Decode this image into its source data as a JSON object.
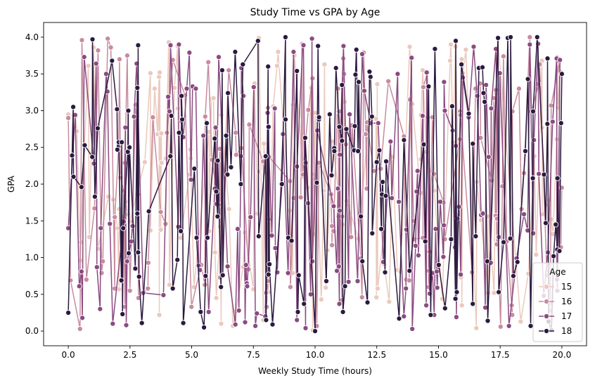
{
  "chart_data": {
    "type": "line",
    "title": "Study Time vs GPA by Age",
    "xlabel": "Weekly Study Time (hours)",
    "ylabel": "GPA",
    "xlim": [
      -1.0,
      21.0
    ],
    "ylim": [
      -0.2,
      4.2
    ],
    "xticks": [
      0.0,
      2.5,
      5.0,
      7.5,
      10.0,
      12.5,
      15.0,
      17.5,
      20.0
    ],
    "xtick_labels": [
      "0.0",
      "2.5",
      "5.0",
      "7.5",
      "10.0",
      "12.5",
      "15.0",
      "17.5",
      "20.0"
    ],
    "yticks": [
      0.0,
      0.5,
      1.0,
      1.5,
      2.0,
      2.5,
      3.0,
      3.5,
      4.0
    ],
    "ytick_labels": [
      "0.0",
      "0.5",
      "1.0",
      "1.5",
      "2.0",
      "2.5",
      "3.0",
      "3.5",
      "4.0"
    ],
    "grid": false,
    "markers": "circle",
    "legend": {
      "title": "Age",
      "placement": "lower right"
    },
    "series": [
      {
        "name": "15",
        "color": "#ebc9bd",
        "seed": 15,
        "n": 130,
        "x": [
          0,
          2,
          3.5,
          6,
          8.5,
          10.5,
          13,
          15.5,
          17.4,
          19.8
        ],
        "y": [
          2.95,
          1.4,
          3.3,
          0.45,
          3.8,
          1.1,
          0.4,
          3.9,
          4.0,
          0.7
        ]
      },
      {
        "name": "16",
        "color": "#c88ba0",
        "seed": 16,
        "n": 130,
        "x": [
          0,
          1.6,
          4,
          6.5,
          9,
          11.5,
          14,
          16.5,
          18.7,
          19.9
        ],
        "y": [
          2.9,
          3.98,
          2.7,
          3.55,
          0.6,
          2.8,
          1.5,
          3.3,
          4.0,
          1.1
        ]
      },
      {
        "name": "17",
        "color": "#8a4b80",
        "seed": 17,
        "n": 150,
        "x": [
          0,
          1.8,
          4.8,
          7.2,
          9.5,
          11,
          13.6,
          16.8,
          18.7,
          19.8
        ],
        "y": [
          1.4,
          0.1,
          3.3,
          0.9,
          3.9,
          2.4,
          0.2,
          1.6,
          3.9,
          0.7
        ]
      },
      {
        "name": "18",
        "color": "#2b1a3f",
        "seed": 18,
        "n": 160,
        "x": [
          0,
          0.2,
          2.8,
          5.5,
          8.8,
          10,
          12.5,
          15.7,
          19.0,
          20.0
        ],
        "y": [
          0.25,
          3.05,
          1.6,
          0.05,
          4.0,
          0.0,
          2.3,
          3.95,
          4.0,
          3.5
        ]
      }
    ]
  }
}
